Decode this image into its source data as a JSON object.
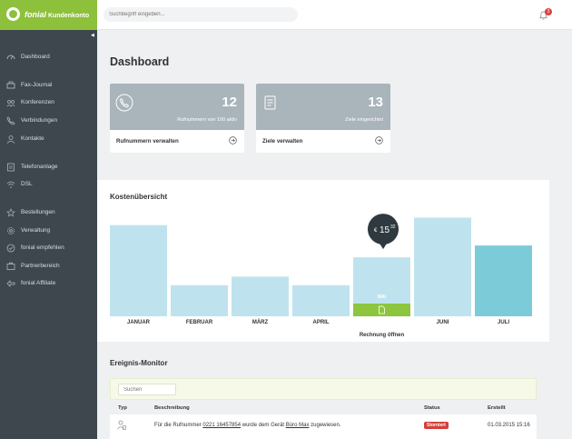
{
  "brand": {
    "name": "fonial",
    "subtitle": "Kundenkonto"
  },
  "search": {
    "placeholder": "Suchbegriff eingeben..."
  },
  "notifications": {
    "count": "3"
  },
  "sidebar": {
    "items": [
      {
        "label": "Dashboard",
        "icon": "dashboard-icon"
      },
      {
        "label": "Fax-Journal",
        "icon": "fax-icon"
      },
      {
        "label": "Konferenzen",
        "icon": "conference-icon"
      },
      {
        "label": "Verbindungen",
        "icon": "phone-icon"
      },
      {
        "label": "Kontakte",
        "icon": "contacts-icon"
      },
      {
        "label": "Telefonanlage",
        "icon": "phone-system-icon"
      },
      {
        "label": "DSL",
        "icon": "wifi-icon"
      },
      {
        "label": "Bestellungen",
        "icon": "star-icon"
      },
      {
        "label": "Verwaltung",
        "icon": "gear-icon"
      },
      {
        "label": "fonial empfehlen",
        "icon": "recommend-icon"
      },
      {
        "label": "Partnerbereich",
        "icon": "partner-icon"
      },
      {
        "label": "fonial Affiliate",
        "icon": "affiliate-icon"
      }
    ]
  },
  "page": {
    "title": "Dashboard"
  },
  "cards": [
    {
      "number": "12",
      "subtitle": "Rufnummern von 100 aktiv",
      "link": "Rufnummern verwalten",
      "icon": "phone-icon"
    },
    {
      "number": "13",
      "subtitle": "Ziele eingerichtet",
      "link": "Ziele verwalten",
      "icon": "destination-icon"
    }
  ],
  "cost": {
    "title": "Kostenübersicht",
    "tooltip": {
      "currency": "€",
      "whole": "15",
      "cents": "32"
    },
    "invoice_link": "Rechnung öffnen"
  },
  "chart_data": {
    "type": "bar",
    "categories": [
      "JANUAR",
      "FEBRUAR",
      "MÄRZ",
      "APRIL",
      "MAI",
      "JUNI",
      "JULI"
    ],
    "values": [
      85,
      29,
      37,
      29,
      55,
      92,
      66
    ],
    "highlight_index": 4,
    "highlight_label": "MAI",
    "colors": {
      "bar": "#bfe3ee",
      "highlight": "#8cc63f",
      "current": "#7ccbd8",
      "tooltip": "#2f3a40"
    }
  },
  "monitor": {
    "title": "Ereignis-Monitor",
    "search_placeholder": "Suchen",
    "columns": [
      "Typ",
      "Beschreibung",
      "Status",
      "Erstellt"
    ],
    "rows": [
      {
        "type_icon": "user-phone-icon",
        "desc_prefix": "Für die Rufnummer",
        "number": "0221 16457854",
        "desc_mid": "wurde dem Gerät",
        "device": "Büro Max",
        "desc_suffix": "zugewiesen.",
        "status": "Storniert",
        "created": "01.03.2015 15:16"
      }
    ]
  }
}
